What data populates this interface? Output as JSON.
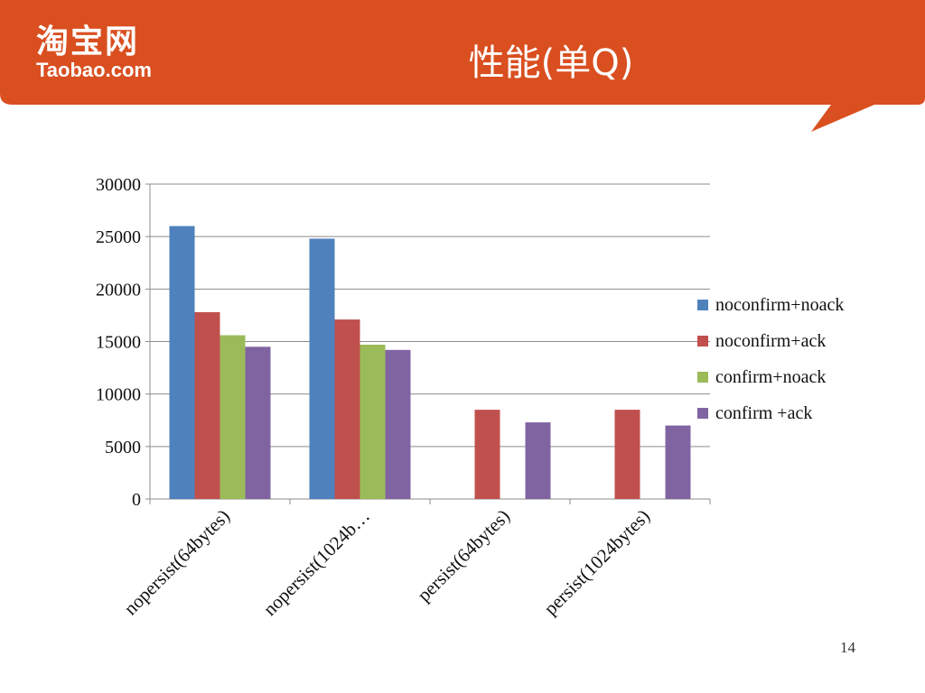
{
  "header": {
    "logo_cn": "淘宝网",
    "logo_en": "Taobao.com",
    "title": "性能(单Q)",
    "banner_color": "#D94F20"
  },
  "page_number": "14",
  "chart_data": {
    "type": "bar",
    "title": "",
    "xlabel": "",
    "ylabel": "",
    "categories": [
      "nopersist(64bytes)",
      "nopersist(1024b…",
      "persist(64bytes)",
      "persist(1024bytes)"
    ],
    "ylim": [
      0,
      30000
    ],
    "yticks": [
      0,
      5000,
      10000,
      15000,
      20000,
      25000,
      30000
    ],
    "grid": true,
    "legend_position": "right",
    "series": [
      {
        "name": "noconfirm+noack",
        "color": "#4F81BD",
        "values": [
          26000,
          24800,
          0,
          0
        ]
      },
      {
        "name": "noconfirm+ack",
        "color": "#C0504D",
        "values": [
          17800,
          17100,
          8500,
          8500
        ]
      },
      {
        "name": "confirm+noack",
        "color": "#9BBB59",
        "values": [
          15600,
          14700,
          0,
          0
        ]
      },
      {
        "name": "confirm +ack",
        "color": "#8064A2",
        "values": [
          14500,
          14200,
          7300,
          7000
        ]
      }
    ]
  }
}
